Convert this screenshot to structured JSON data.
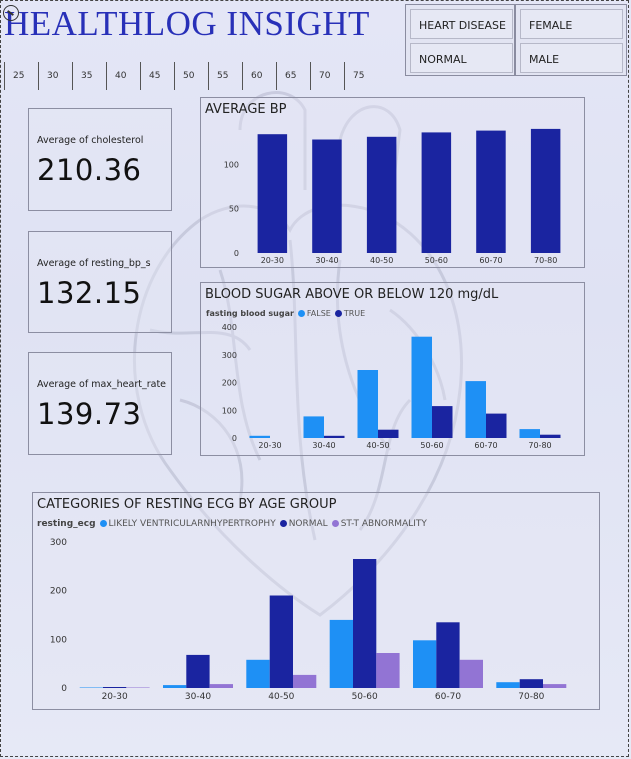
{
  "title": "HEALTHLOG INSIGHT",
  "slicers": [
    {
      "items": [
        "HEART DISEASE",
        "NORMAL"
      ]
    },
    {
      "items": [
        "FEMALE",
        "MALE"
      ]
    }
  ],
  "age_ticks": [
    "25",
    "30",
    "35",
    "40",
    "45",
    "50",
    "55",
    "60",
    "65",
    "70",
    "75"
  ],
  "cards": [
    {
      "label": "Average of cholesterol",
      "value": "210.36"
    },
    {
      "label": "Average of resting_bp_s",
      "value": "132.15"
    },
    {
      "label": "Average of max_heart_rate",
      "value": "139.73"
    }
  ],
  "colors": {
    "dark": "#1a24a0",
    "light": "#1e90f5",
    "purple": "#9274d4"
  },
  "chart_data": [
    {
      "type": "bar",
      "title": "AVERAGE BP",
      "categories": [
        "20-30",
        "30-40",
        "40-50",
        "50-60",
        "60-70",
        "70-80"
      ],
      "values": [
        134,
        128,
        131,
        136,
        138,
        140
      ],
      "ylim": [
        0,
        150
      ],
      "yticks": [
        0,
        50,
        100
      ],
      "grid": false
    },
    {
      "type": "bar",
      "title": "BLOOD SUGAR ABOVE OR BELOW 120 mg/dL",
      "legend_title": "fasting blood sugar",
      "legend_position": "top-left",
      "categories": [
        "20-30",
        "30-40",
        "40-50",
        "50-60",
        "60-70",
        "70-80"
      ],
      "series": [
        {
          "name": "FALSE",
          "values": [
            8,
            78,
            245,
            365,
            205,
            32
          ]
        },
        {
          "name": "TRUE",
          "values": [
            0,
            8,
            30,
            115,
            88,
            12
          ]
        }
      ],
      "ylim": [
        0,
        400
      ],
      "yticks": [
        0,
        100,
        200,
        300,
        400
      ],
      "grid": false
    },
    {
      "type": "bar",
      "title": "CATEGORIES OF RESTING ECG BY AGE GROUP",
      "legend_title": "resting_ecg",
      "legend_position": "top-left",
      "categories": [
        "20-30",
        "30-40",
        "40-50",
        "50-60",
        "60-70",
        "70-80"
      ],
      "series": [
        {
          "name": "LIKELY VENTRICULARNHYPERTROPHY",
          "values": [
            1,
            6,
            58,
            140,
            98,
            12
          ]
        },
        {
          "name": "NORMAL",
          "values": [
            2,
            68,
            190,
            265,
            135,
            18
          ]
        },
        {
          "name": "ST-T ABNORMALITY",
          "values": [
            1,
            8,
            27,
            72,
            58,
            8
          ]
        }
      ],
      "ylim": [
        0,
        300
      ],
      "yticks": [
        0,
        100,
        200,
        300
      ],
      "grid": false
    }
  ]
}
